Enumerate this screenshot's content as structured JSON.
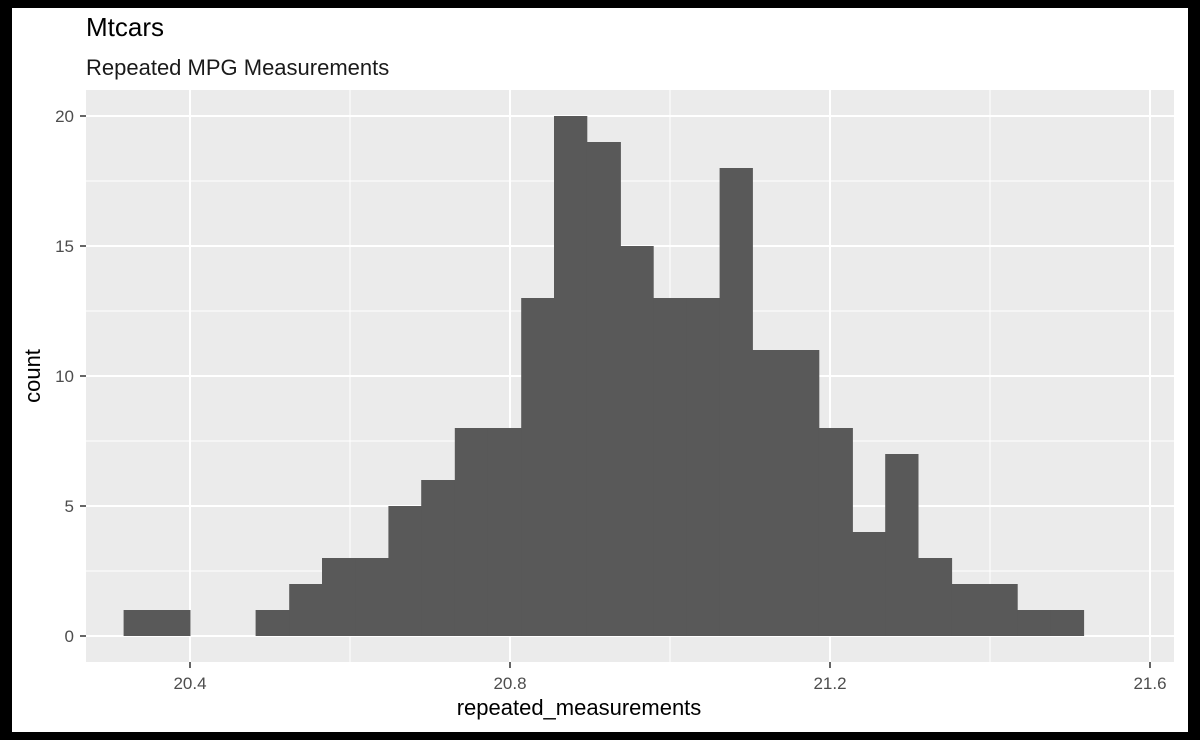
{
  "chart_data": {
    "type": "bar",
    "title": "Mtcars",
    "subtitle": "Repeated MPG Measurements",
    "xlabel": "repeated_measurements",
    "ylabel": "count",
    "xlim": [
      20.27,
      21.63
    ],
    "ylim": [
      -1,
      21
    ],
    "x_ticks": [
      20.4,
      20.8,
      21.2,
      21.6
    ],
    "x_tick_labels": [
      "20.4",
      "20.8",
      "21.2",
      "21.6"
    ],
    "y_ticks": [
      0,
      5,
      10,
      15,
      20
    ],
    "y_tick_labels": [
      "0",
      "5",
      "10",
      "15",
      "20"
    ],
    "grid": true,
    "bin_width": 0.0414,
    "bins": [
      {
        "x0": 20.317,
        "x1": 20.358,
        "count": 1
      },
      {
        "x0": 20.358,
        "x1": 20.4,
        "count": 1
      },
      {
        "x0": 20.4,
        "x1": 20.441,
        "count": 0
      },
      {
        "x0": 20.441,
        "x1": 20.482,
        "count": 0
      },
      {
        "x0": 20.482,
        "x1": 20.524,
        "count": 1
      },
      {
        "x0": 20.524,
        "x1": 20.565,
        "count": 2
      },
      {
        "x0": 20.565,
        "x1": 20.607,
        "count": 3
      },
      {
        "x0": 20.607,
        "x1": 20.648,
        "count": 3
      },
      {
        "x0": 20.648,
        "x1": 20.689,
        "count": 5
      },
      {
        "x0": 20.689,
        "x1": 20.731,
        "count": 6
      },
      {
        "x0": 20.731,
        "x1": 20.772,
        "count": 8
      },
      {
        "x0": 20.772,
        "x1": 20.814,
        "count": 8
      },
      {
        "x0": 20.814,
        "x1": 20.855,
        "count": 13
      },
      {
        "x0": 20.855,
        "x1": 20.896,
        "count": 20
      },
      {
        "x0": 20.896,
        "x1": 20.938,
        "count": 19
      },
      {
        "x0": 20.938,
        "x1": 20.979,
        "count": 15
      },
      {
        "x0": 20.979,
        "x1": 21.021,
        "count": 13
      },
      {
        "x0": 21.021,
        "x1": 21.062,
        "count": 13
      },
      {
        "x0": 21.062,
        "x1": 21.103,
        "count": 18
      },
      {
        "x0": 21.103,
        "x1": 21.145,
        "count": 11
      },
      {
        "x0": 21.145,
        "x1": 21.186,
        "count": 11
      },
      {
        "x0": 21.186,
        "x1": 21.228,
        "count": 8
      },
      {
        "x0": 21.228,
        "x1": 21.269,
        "count": 4
      },
      {
        "x0": 21.269,
        "x1": 21.31,
        "count": 7
      },
      {
        "x0": 21.31,
        "x1": 21.352,
        "count": 3
      },
      {
        "x0": 21.352,
        "x1": 21.393,
        "count": 2
      },
      {
        "x0": 21.393,
        "x1": 21.434,
        "count": 2
      },
      {
        "x0": 21.434,
        "x1": 21.476,
        "count": 1
      },
      {
        "x0": 21.476,
        "x1": 21.517,
        "count": 1
      }
    ],
    "colors": {
      "panel": "#ebebeb",
      "grid": "#ffffff",
      "bar": "#595959",
      "page": "#ffffff",
      "frame": "#000000"
    }
  }
}
